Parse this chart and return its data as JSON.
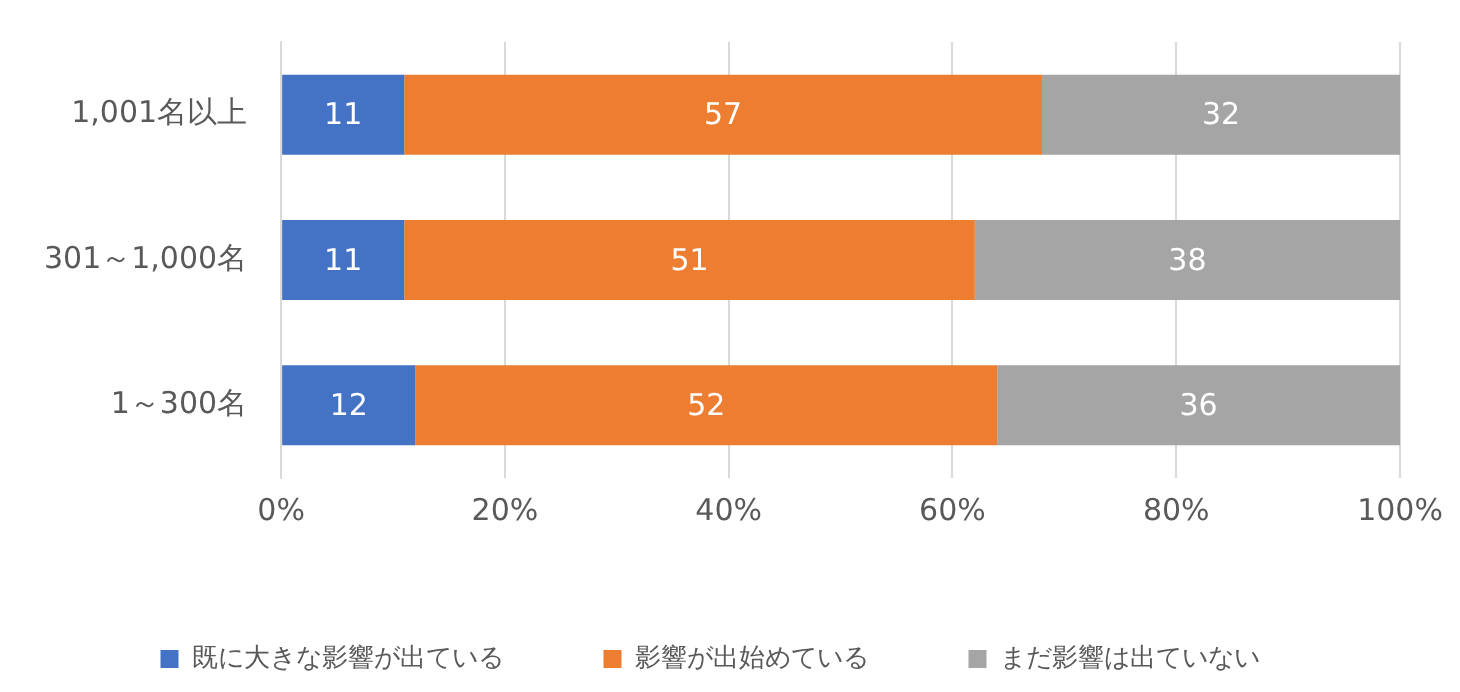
{
  "chart_data": {
    "type": "bar",
    "orientation": "horizontal",
    "stacked": true,
    "categories": [
      "1,001名以上",
      "301～1,000名",
      "1～300名"
    ],
    "series": [
      {
        "name": "既に大きな影響が出ている",
        "color": "#4472c4",
        "values": [
          11,
          11,
          12
        ]
      },
      {
        "name": "影響が出始めている",
        "color": "#ed7d31",
        "values": [
          57,
          51,
          52
        ]
      },
      {
        "name": "まだ影響は出ていない",
        "color": "#a5a5a5",
        "values": [
          32,
          38,
          36
        ]
      }
    ],
    "xlim": [
      0,
      100
    ],
    "xticks": [
      {
        "value": 0,
        "label": "0%"
      },
      {
        "value": 20,
        "label": "20%"
      },
      {
        "value": 40,
        "label": "40%"
      },
      {
        "value": 60,
        "label": "60%"
      },
      {
        "value": 80,
        "label": "80%"
      },
      {
        "value": 100,
        "label": "100%"
      }
    ],
    "grid": "x",
    "legend": "bottom",
    "data_labels": true
  }
}
